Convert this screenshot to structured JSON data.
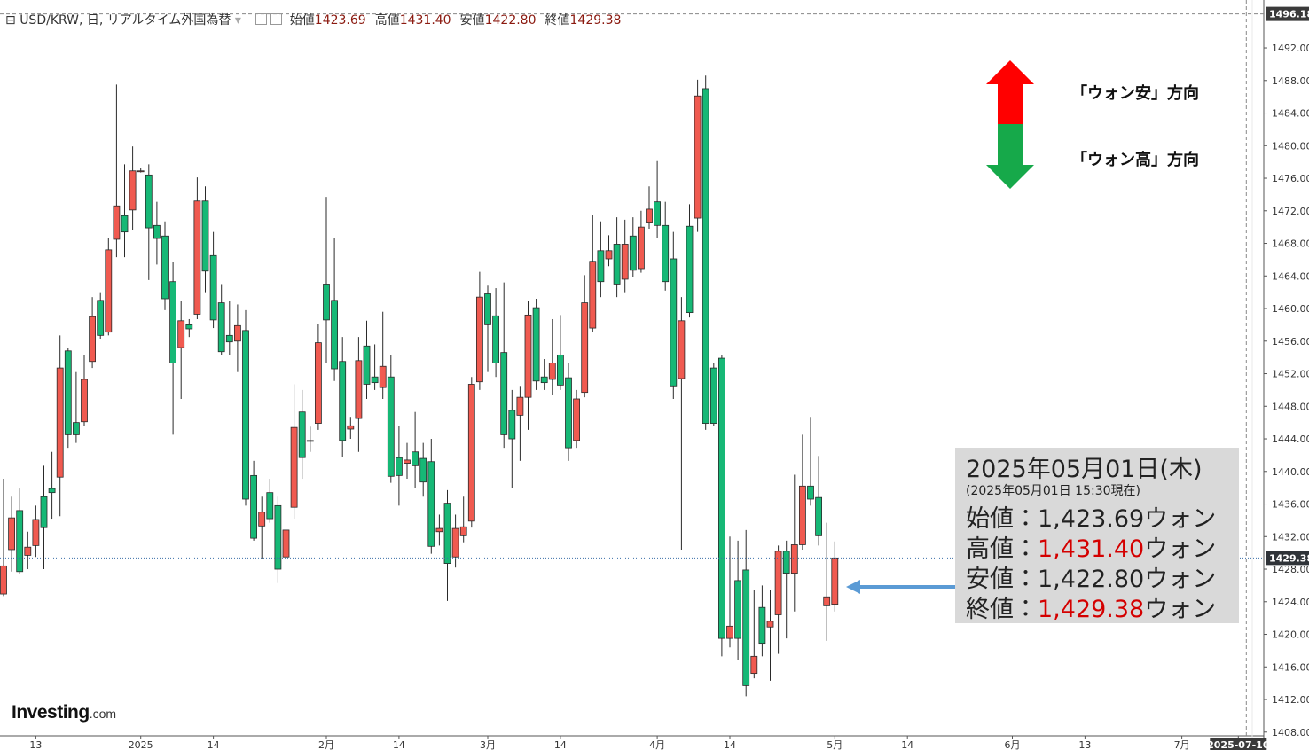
{
  "header": {
    "symbol": "USD/KRW, 日, リアルタイム外国為替",
    "items": [
      {
        "label": "始値",
        "value": "1423.69"
      },
      {
        "label": "高値",
        "value": "1431.40"
      },
      {
        "label": "安値",
        "value": "1422.80"
      },
      {
        "label": "終値",
        "value": "1429.38"
      }
    ]
  },
  "chart_data": {
    "type": "candlestick",
    "categories": [
      null,
      null,
      null,
      null,
      "13",
      null,
      null,
      null,
      null,
      null,
      null,
      null,
      null,
      null,
      null,
      null,
      null,
      "2025",
      null,
      null,
      null,
      null,
      null,
      null,
      null,
      null,
      "14",
      null,
      null,
      null,
      null,
      null,
      null,
      null,
      null,
      null,
      null,
      null,
      null,
      null,
      "2月",
      null,
      null,
      null,
      null,
      null,
      null,
      null,
      null,
      "14",
      null,
      null,
      null,
      null,
      null,
      null,
      null,
      null,
      null,
      null,
      "3月",
      null,
      null,
      null,
      null,
      null,
      null,
      null,
      null,
      "14",
      null,
      null,
      null,
      null,
      null,
      null,
      null,
      null,
      null,
      null,
      null,
      "4月",
      null,
      null,
      null,
      null,
      null,
      null,
      null,
      null,
      "14",
      null,
      null,
      null,
      null,
      null,
      null,
      null,
      null,
      null,
      null,
      null,
      null,
      "5月",
      null,
      null,
      null,
      null,
      null,
      null,
      null,
      null,
      "14",
      null,
      null,
      null,
      null,
      null,
      null,
      null,
      null,
      null,
      null,
      null,
      null,
      "6月",
      null,
      null,
      null,
      null,
      null,
      null,
      null,
      null,
      "13",
      null,
      null,
      null,
      null,
      null,
      null,
      null,
      null,
      null,
      null,
      null,
      "7月",
      null,
      null,
      null,
      null,
      null,
      null,
      "2025-07-10"
    ],
    "open": [
      1424.95,
      1430.4,
      1435.2,
      1429.7,
      1430.9,
      1436.9,
      1437.9,
      1439.3,
      1454.8,
      1446.0,
      1446.1,
      1453.5,
      1461.0,
      1457.1,
      1468.5,
      1471.4,
      1472.1,
      1476.8,
      1476.4,
      1470.2,
      1468.9,
      1463.3,
      1455.2,
      1458.0,
      1459.3,
      1473.2,
      1466.5,
      1460.7,
      1456.7,
      1456.0,
      1457.3,
      1439.5,
      1433.3,
      1437.4,
      1435.8,
      1429.5,
      1435.6,
      1447.3,
      1443.7,
      1445.9,
      1463.0,
      1461.0,
      1453.5,
      1445.2,
      1446.5,
      1455.4,
      1451.6,
      1450.3,
      1451.6,
      1441.7,
      1441.0,
      1442.4,
      1441.6,
      1441.2,
      1432.6,
      1436.1,
      1429.5,
      1432.1,
      1433.9,
      1451.0,
      1461.8,
      1459.1,
      1454.6,
      1447.5,
      1446.9,
      1449.1,
      1460.1,
      1451.6,
      1451.3,
      1454.3,
      1451.5,
      1443.8,
      1449.7,
      1457.6,
      1467.1,
      1466.1,
      1467.9,
      1463.6,
      1468.9,
      1464.9,
      1470.6,
      1473.1,
      1470.2,
      1466.1,
      1451.4,
      1470.1,
      1471.1,
      1487.0,
      1452.7,
      1453.9,
      1419.5,
      1426.6,
      1427.9,
      1415.2,
      1423.3,
      1420.9,
      1422.4,
      1430.2,
      1427.5,
      1431.0,
      1438.2,
      1436.8,
      1423.5,
      1423.69,
      null,
      null,
      null,
      null,
      null,
      null,
      null,
      null,
      null,
      null,
      null,
      null,
      null,
      null,
      null,
      null,
      null,
      null,
      null,
      null,
      null,
      null,
      null,
      null,
      null,
      null,
      null,
      null,
      null,
      null,
      null,
      null,
      null,
      null,
      null,
      null,
      null,
      null,
      null,
      null,
      null,
      null,
      null,
      null,
      null,
      null,
      null,
      null,
      null,
      null
    ],
    "high": [
      1439.1,
      1436.9,
      1437.9,
      1432.6,
      1435.8,
      1440.7,
      1442.4,
      1456.7,
      1455.2,
      1452.2,
      1454.3,
      1461.4,
      1462.0,
      1468.7,
      1487.5,
      1477.7,
      1479.9,
      1477.2,
      1477.7,
      1473.1,
      1470.7,
      1465.7,
      1460.9,
      1458.7,
      1476.1,
      1475.0,
      1469.4,
      1463.0,
      1460.9,
      1460.5,
      1459.8,
      1441.3,
      1436.9,
      1439.1,
      1436.9,
      1433.7,
      1450.7,
      1450.0,
      1445.5,
      1458.1,
      1473.7,
      1468.7,
      1456.5,
      1446.7,
      1456.5,
      1458.5,
      1455.6,
      1459.6,
      1454.3,
      1445.6,
      1443.5,
      1447.3,
      1443.5,
      1444.0,
      1434.7,
      1437.7,
      1434.7,
      1436.9,
      1451.6,
      1464.5,
      1462.8,
      1462.5,
      1463.2,
      1450.0,
      1450.5,
      1460.9,
      1461.2,
      1453.8,
      1458.7,
      1459.2,
      1453.3,
      1450.0,
      1464.1,
      1471.5,
      1470.7,
      1469.0,
      1471.2,
      1470.9,
      1471.2,
      1472.0,
      1475.0,
      1478.1,
      1473.1,
      1469.4,
      1461.4,
      1472.8,
      1488.1,
      1488.6,
      1453.3,
      1454.3,
      1432.0,
      1431.5,
      1432.8,
      1425.5,
      1426.0,
      1425.5,
      1430.9,
      1431.5,
      1439.6,
      1444.5,
      1446.7,
      1441.9,
      1433.7,
      1431.4,
      null,
      null,
      null,
      null,
      null,
      null,
      null,
      null,
      null,
      null,
      null,
      null,
      null,
      null,
      null,
      null,
      null,
      null,
      null,
      null,
      null,
      null,
      null,
      null,
      null,
      null,
      null,
      null,
      null,
      null,
      null,
      null,
      null,
      null,
      null,
      null,
      null,
      null,
      null,
      null,
      null,
      null,
      null,
      null,
      null,
      null,
      null,
      null,
      null,
      null
    ],
    "low": [
      1424.7,
      1427.7,
      1427.4,
      1428.0,
      1429.5,
      1428.0,
      1434.2,
      1434.5,
      1442.9,
      1443.5,
      1445.6,
      1452.7,
      1456.3,
      1456.7,
      1466.3,
      1466.3,
      1469.6,
      1476.7,
      1463.5,
      1465.4,
      1459.8,
      1444.5,
      1448.9,
      1456.5,
      1458.7,
      1462.0,
      1457.6,
      1454.3,
      1454.3,
      1452.2,
      1435.8,
      1431.5,
      1429.3,
      1433.7,
      1426.3,
      1429.1,
      1434.2,
      1439.1,
      1442.4,
      1445.1,
      1453.3,
      1451.1,
      1441.8,
      1444.0,
      1442.4,
      1448.9,
      1450.0,
      1448.9,
      1438.6,
      1435.8,
      1439.1,
      1438.0,
      1436.9,
      1429.9,
      1430.9,
      1424.1,
      1428.2,
      1431.3,
      1433.1,
      1450.0,
      1452.2,
      1451.6,
      1442.9,
      1438.0,
      1441.3,
      1445.1,
      1450.0,
      1450.0,
      1449.4,
      1450.0,
      1441.3,
      1442.9,
      1449.1,
      1457.1,
      1461.4,
      1465.2,
      1461.4,
      1462.0,
      1463.9,
      1464.4,
      1469.8,
      1468.7,
      1462.2,
      1448.9,
      1430.4,
      1458.9,
      1469.4,
      1445.1,
      1445.6,
      1417.3,
      1418.4,
      1416.8,
      1412.4,
      1414.6,
      1417.3,
      1414.3,
      1417.6,
      1419.5,
      1422.8,
      1430.4,
      1435.8,
      1430.9,
      1419.2,
      1422.8,
      null,
      null,
      null,
      null,
      null,
      null,
      null,
      null,
      null,
      null,
      null,
      null,
      null,
      null,
      null,
      null,
      null,
      null,
      null,
      null,
      null,
      null,
      null,
      null,
      null,
      null,
      null,
      null,
      null,
      null,
      null,
      null,
      null,
      null,
      null,
      null,
      null,
      null,
      null,
      null,
      null,
      null,
      null,
      null,
      null,
      null,
      null,
      null,
      null,
      null
    ],
    "close": [
      1428.4,
      1434.3,
      1427.7,
      1430.7,
      1434.1,
      1433.1,
      1437.4,
      1452.7,
      1444.5,
      1444.5,
      1451.3,
      1459.0,
      1456.7,
      1467.2,
      1472.6,
      1469.4,
      1476.9,
      1476.9,
      1469.9,
      1468.6,
      1461.2,
      1453.3,
      1458.5,
      1457.5,
      1473.2,
      1464.6,
      1458.6,
      1454.7,
      1455.9,
      1457.9,
      1436.6,
      1431.8,
      1435.0,
      1434.2,
      1428.0,
      1432.8,
      1445.4,
      1441.7,
      1443.8,
      1455.8,
      1458.6,
      1452.6,
      1443.8,
      1445.6,
      1453.6,
      1450.7,
      1450.9,
      1452.9,
      1439.4,
      1439.5,
      1441.4,
      1440.7,
      1438.7,
      1430.8,
      1433.0,
      1428.7,
      1433.0,
      1433.2,
      1450.7,
      1461.4,
      1458.0,
      1453.3,
      1444.5,
      1444.0,
      1449.1,
      1459.2,
      1451.1,
      1450.9,
      1453.3,
      1450.6,
      1442.9,
      1448.9,
      1460.7,
      1465.8,
      1463.3,
      1467.1,
      1463.0,
      1467.9,
      1464.7,
      1470.0,
      1472.2,
      1470.2,
      1463.3,
      1450.5,
      1458.5,
      1459.5,
      1486.1,
      1445.9,
      1445.9,
      1419.5,
      1421.0,
      1419.5,
      1413.7,
      1417.3,
      1418.9,
      1421.6,
      1430.2,
      1427.5,
      1431.0,
      1438.2,
      1436.6,
      1432.1,
      1424.6,
      1429.38,
      null,
      null,
      null,
      null,
      null,
      null,
      null,
      null,
      null,
      null,
      null,
      null,
      null,
      null,
      null,
      null,
      null,
      null,
      null,
      null,
      null,
      null,
      null,
      null,
      null,
      null,
      null,
      null,
      null,
      null,
      null,
      null,
      null,
      null,
      null,
      null,
      null,
      null,
      null,
      null,
      null,
      null,
      null,
      null,
      null,
      null,
      null,
      null,
      null,
      null
    ],
    "up_color": "#f05a50",
    "down_color": "#16b876",
    "outline_color": "#2a2a2a",
    "ylim": [
      1407.54,
      1497.88
    ],
    "yticks": [
      {
        "value": 1408,
        "label": "1408.00"
      },
      {
        "value": 1412,
        "label": "1412.00"
      },
      {
        "value": 1416,
        "label": "1416.00"
      },
      {
        "value": 1420,
        "label": "1420.00"
      },
      {
        "value": 1424,
        "label": "1424.00"
      },
      {
        "value": 1428,
        "label": "1428.00"
      },
      {
        "value": 1432,
        "label": "1432.00"
      },
      {
        "value": 1436,
        "label": "1436.00"
      },
      {
        "value": 1440,
        "label": "1440.00"
      },
      {
        "value": 1444,
        "label": "1444.00"
      },
      {
        "value": 1448,
        "label": "1448.00"
      },
      {
        "value": 1452,
        "label": "1452.00"
      },
      {
        "value": 1456,
        "label": "1456.00"
      },
      {
        "value": 1460,
        "label": "1460.00"
      },
      {
        "value": 1464,
        "label": "1464.00"
      },
      {
        "value": 1468,
        "label": "1468.00"
      },
      {
        "value": 1472,
        "label": "1472.00"
      },
      {
        "value": 1476,
        "label": "1476.00"
      },
      {
        "value": 1480,
        "label": "1480.00"
      },
      {
        "value": 1484,
        "label": "1484.00"
      },
      {
        "value": 1488,
        "label": "1488.00"
      },
      {
        "value": 1492,
        "label": "1492.00"
      }
    ],
    "crosshair_price": 1496.18,
    "grid": false
  },
  "annotation": {
    "date": "2025年05月01日(木)",
    "note": "(2025年05月01日 15:30現在)",
    "rows": [
      {
        "label": "始値",
        "sep": "：",
        "value": "1,423.69",
        "unit": "ウォン",
        "color": "#222222"
      },
      {
        "label": "高値",
        "sep": "：",
        "value": "1,431.40",
        "unit": "ウォン",
        "color": "#d40000"
      },
      {
        "label": "安値",
        "sep": "：",
        "value": "1,422.80",
        "unit": "ウォン",
        "color": "#222222"
      },
      {
        "label": "終値",
        "sep": "：",
        "value": "1,429.38",
        "unit": "ウォン",
        "color": "#d40000"
      }
    ]
  },
  "arrows": {
    "up_label": "「ウォン安」方向",
    "down_label": "「ウォン高」方向"
  },
  "logo": {
    "brand": "Investing",
    "suffix": ".com"
  }
}
